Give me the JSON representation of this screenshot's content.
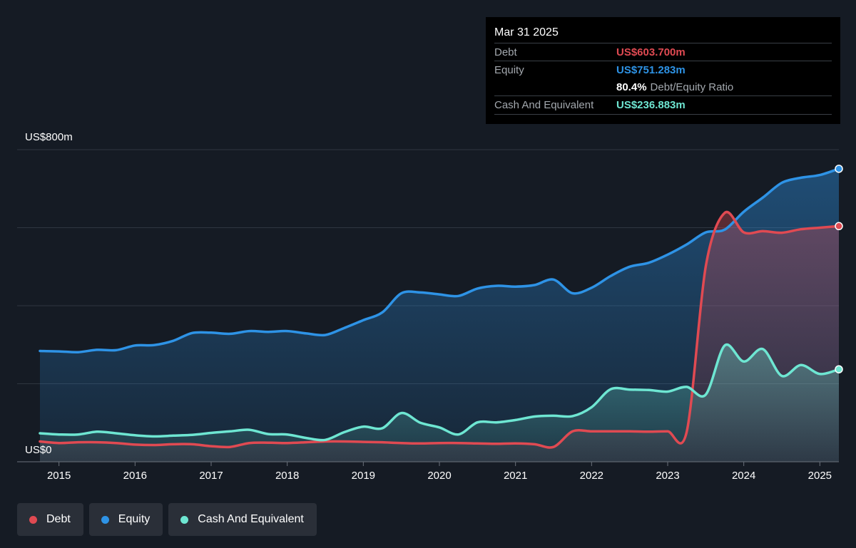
{
  "tooltip": {
    "date": "Mar 31 2025",
    "debt_label": "Debt",
    "debt_value": "US$603.700m",
    "equity_label": "Equity",
    "equity_value": "US$751.283m",
    "ratio_value": "80.4%",
    "ratio_label": "Debt/Equity Ratio",
    "cash_label": "Cash And Equivalent",
    "cash_value": "US$236.883m"
  },
  "legend": {
    "debt": "Debt",
    "equity": "Equity",
    "cash": "Cash And Equivalent"
  },
  "colors": {
    "debt": "#e04a52",
    "equity": "#2e93e6",
    "cash": "#6ee6d2",
    "background": "#151b24"
  },
  "chart_data": {
    "type": "area",
    "title": "",
    "xlabel": "",
    "ylabel": "",
    "ylim": [
      0,
      800
    ],
    "y_unit": "US$m",
    "y_tick_labels": [
      {
        "value": 800,
        "label": "US$800m"
      },
      {
        "value": 0,
        "label": "US$0"
      }
    ],
    "y_gridlines": [
      800,
      600,
      400,
      200,
      0
    ],
    "x_range": [
      2014.45,
      2025.25
    ],
    "x_ticks": [
      2015,
      2016,
      2017,
      2018,
      2019,
      2020,
      2021,
      2022,
      2023,
      2024,
      2025
    ],
    "x_tick_labels": [
      "2015",
      "2016",
      "2017",
      "2018",
      "2019",
      "2020",
      "2021",
      "2022",
      "2023",
      "2024",
      "2025"
    ],
    "grid": true,
    "legend_position": "bottom-left",
    "series": [
      {
        "name": "Debt",
        "key": "debt",
        "points": [
          [
            2014.75,
            52
          ],
          [
            2015.0,
            48
          ],
          [
            2015.25,
            50
          ],
          [
            2015.5,
            50
          ],
          [
            2015.75,
            48
          ],
          [
            2016.0,
            44
          ],
          [
            2016.25,
            43
          ],
          [
            2016.5,
            45
          ],
          [
            2016.75,
            45
          ],
          [
            2017.0,
            40
          ],
          [
            2017.25,
            38
          ],
          [
            2017.5,
            48
          ],
          [
            2017.75,
            49
          ],
          [
            2018.0,
            48
          ],
          [
            2018.25,
            50
          ],
          [
            2018.5,
            52
          ],
          [
            2018.75,
            52
          ],
          [
            2019.0,
            51
          ],
          [
            2019.25,
            50
          ],
          [
            2019.5,
            48
          ],
          [
            2019.75,
            47
          ],
          [
            2020.0,
            48
          ],
          [
            2020.25,
            48
          ],
          [
            2020.5,
            47
          ],
          [
            2020.75,
            46
          ],
          [
            2021.0,
            47
          ],
          [
            2021.25,
            45
          ],
          [
            2021.5,
            38
          ],
          [
            2021.75,
            78
          ],
          [
            2022.0,
            78
          ],
          [
            2022.25,
            78
          ],
          [
            2022.5,
            78
          ],
          [
            2022.75,
            77
          ],
          [
            2023.0,
            78
          ],
          [
            2023.25,
            77
          ],
          [
            2023.5,
            500
          ],
          [
            2023.75,
            638
          ],
          [
            2024.0,
            588
          ],
          [
            2024.25,
            591
          ],
          [
            2024.5,
            587
          ],
          [
            2024.75,
            596
          ],
          [
            2025.0,
            600
          ],
          [
            2025.25,
            604
          ]
        ]
      },
      {
        "name": "Equity",
        "key": "equity",
        "points": [
          [
            2014.75,
            284
          ],
          [
            2015.0,
            283
          ],
          [
            2015.25,
            281
          ],
          [
            2015.5,
            287
          ],
          [
            2015.75,
            286
          ],
          [
            2016.0,
            298
          ],
          [
            2016.25,
            299
          ],
          [
            2016.5,
            310
          ],
          [
            2016.75,
            330
          ],
          [
            2017.0,
            331
          ],
          [
            2017.25,
            328
          ],
          [
            2017.5,
            335
          ],
          [
            2017.75,
            333
          ],
          [
            2018.0,
            335
          ],
          [
            2018.25,
            329
          ],
          [
            2018.5,
            325
          ],
          [
            2018.75,
            343
          ],
          [
            2019.0,
            363
          ],
          [
            2019.25,
            383
          ],
          [
            2019.5,
            432
          ],
          [
            2019.75,
            434
          ],
          [
            2020.0,
            429
          ],
          [
            2020.25,
            425
          ],
          [
            2020.5,
            444
          ],
          [
            2020.75,
            451
          ],
          [
            2021.0,
            449
          ],
          [
            2021.25,
            453
          ],
          [
            2021.5,
            467
          ],
          [
            2021.75,
            432
          ],
          [
            2022.0,
            446
          ],
          [
            2022.25,
            476
          ],
          [
            2022.5,
            500
          ],
          [
            2022.75,
            510
          ],
          [
            2023.0,
            531
          ],
          [
            2023.25,
            557
          ],
          [
            2023.5,
            588
          ],
          [
            2023.75,
            595
          ],
          [
            2024.0,
            641
          ],
          [
            2024.25,
            677
          ],
          [
            2024.5,
            715
          ],
          [
            2024.75,
            728
          ],
          [
            2025.0,
            735
          ],
          [
            2025.25,
            751
          ]
        ]
      },
      {
        "name": "Cash And Equivalent",
        "key": "cash",
        "points": [
          [
            2014.75,
            73
          ],
          [
            2015.0,
            70
          ],
          [
            2015.25,
            70
          ],
          [
            2015.5,
            77
          ],
          [
            2015.75,
            73
          ],
          [
            2016.0,
            68
          ],
          [
            2016.25,
            65
          ],
          [
            2016.5,
            67
          ],
          [
            2016.75,
            69
          ],
          [
            2017.0,
            74
          ],
          [
            2017.25,
            78
          ],
          [
            2017.5,
            82
          ],
          [
            2017.75,
            71
          ],
          [
            2018.0,
            70
          ],
          [
            2018.25,
            61
          ],
          [
            2018.5,
            56
          ],
          [
            2018.75,
            76
          ],
          [
            2019.0,
            90
          ],
          [
            2019.25,
            86
          ],
          [
            2019.5,
            125
          ],
          [
            2019.75,
            100
          ],
          [
            2020.0,
            88
          ],
          [
            2020.25,
            70
          ],
          [
            2020.5,
            101
          ],
          [
            2020.75,
            101
          ],
          [
            2021.0,
            107
          ],
          [
            2021.25,
            116
          ],
          [
            2021.5,
            118
          ],
          [
            2021.75,
            117
          ],
          [
            2022.0,
            140
          ],
          [
            2022.25,
            186
          ],
          [
            2022.5,
            185
          ],
          [
            2022.75,
            184
          ],
          [
            2023.0,
            180
          ],
          [
            2023.25,
            192
          ],
          [
            2023.5,
            172
          ],
          [
            2023.75,
            298
          ],
          [
            2024.0,
            257
          ],
          [
            2024.25,
            289
          ],
          [
            2024.5,
            220
          ],
          [
            2024.75,
            248
          ],
          [
            2025.0,
            225
          ],
          [
            2025.25,
            237
          ]
        ]
      }
    ]
  }
}
